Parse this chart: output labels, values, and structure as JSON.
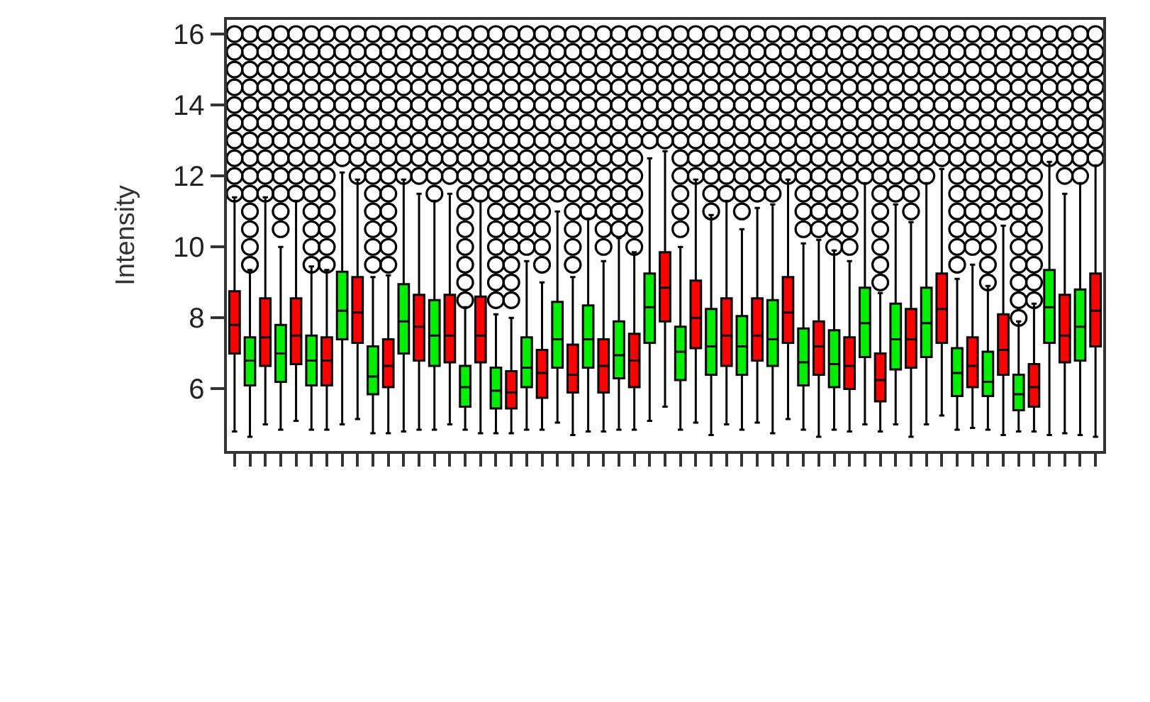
{
  "chart_data": {
    "type": "box",
    "ylabel": "Intensity",
    "ylim": [
      4.25,
      16.4
    ],
    "yticks": [
      6,
      8,
      10,
      12,
      14,
      16
    ],
    "tick_labels": "y",
    "categories": [
      null,
      null,
      null,
      null,
      null,
      null,
      null,
      null,
      null,
      null,
      null,
      null,
      null,
      null,
      null,
      null,
      null,
      null,
      null,
      null,
      null,
      null,
      null,
      null,
      null,
      null,
      null,
      null,
      null,
      null,
      null,
      null,
      null,
      null,
      null,
      null,
      null,
      null,
      null,
      null,
      null,
      null,
      null,
      null,
      null,
      null,
      null,
      null,
      null,
      null,
      null,
      null,
      null,
      null,
      null,
      null,
      null
    ],
    "colors": [
      "#ff0000",
      "#00ee00",
      "#ff0000",
      "#00ee00",
      "#ff0000",
      "#00ee00",
      "#ff0000",
      "#00ee00",
      "#ff0000",
      "#00ee00",
      "#ff0000",
      "#00ee00",
      "#ff0000",
      "#00ee00",
      "#ff0000",
      "#00ee00",
      "#ff0000",
      "#00ee00",
      "#ff0000",
      "#00ee00",
      "#ff0000",
      "#00ee00",
      "#ff0000",
      "#00ee00",
      "#ff0000",
      "#00ee00",
      "#ff0000",
      "#00ee00",
      "#ff0000",
      "#00ee00",
      "#ff0000",
      "#00ee00",
      "#ff0000",
      "#00ee00",
      "#ff0000",
      "#00ee00",
      "#ff0000",
      "#00ee00",
      "#ff0000",
      "#00ee00",
      "#ff0000",
      "#00ee00",
      "#ff0000",
      "#00ee00",
      "#ff0000",
      "#00ee00",
      "#ff0000",
      "#00ee00",
      "#ff0000",
      "#00ee00",
      "#ff0000",
      "#00ee00",
      "#ff0000",
      "#00ee00",
      "#ff0000",
      "#00ee00",
      "#ff0000"
    ],
    "boxes": [
      {
        "low": 4.8,
        "q1": 7.0,
        "median": 7.8,
        "q3": 8.75,
        "high": 11.4,
        "outliers": [
          11.5,
          12,
          12.5,
          13,
          13.5,
          14,
          14.5,
          15,
          15.5,
          16
        ]
      },
      {
        "low": 4.65,
        "q1": 6.1,
        "median": 6.8,
        "q3": 7.45,
        "high": 9.35,
        "outliers": [
          9.5,
          10,
          10.5,
          11,
          11.5,
          12,
          12.5,
          13,
          13.5,
          14,
          14.5,
          15,
          15.5,
          16
        ]
      },
      {
        "low": 5.0,
        "q1": 6.65,
        "median": 7.45,
        "q3": 8.55,
        "high": 11.4,
        "outliers": [
          11.5,
          12,
          12.5,
          13,
          13.5,
          14,
          14.5,
          15,
          15.5,
          16
        ]
      },
      {
        "low": 4.85,
        "q1": 6.2,
        "median": 7.0,
        "q3": 7.8,
        "high": 10.0,
        "outliers": [
          10.5,
          11,
          11.5,
          12,
          12.5,
          13,
          13.5,
          14,
          14.5,
          15,
          15.5,
          16
        ]
      },
      {
        "low": 5.1,
        "q1": 6.7,
        "median": 7.5,
        "q3": 8.55,
        "high": 11.3,
        "outliers": [
          11.5,
          12,
          12.5,
          13,
          13.5,
          14,
          14.5,
          15,
          15.5,
          16
        ]
      },
      {
        "low": 4.85,
        "q1": 6.1,
        "median": 6.8,
        "q3": 7.5,
        "high": 9.45,
        "outliers": [
          9.5,
          10,
          10.5,
          11,
          11.5,
          12,
          12.5,
          13,
          13.5,
          14,
          14.5,
          15,
          15.5,
          16
        ]
      },
      {
        "low": 4.85,
        "q1": 6.1,
        "median": 6.8,
        "q3": 7.45,
        "high": 9.35,
        "outliers": [
          9.5,
          10,
          10.5,
          11,
          11.5,
          12,
          12.5,
          13,
          13.5,
          14,
          14.5,
          15,
          15.5,
          16
        ]
      },
      {
        "low": 5.0,
        "q1": 7.4,
        "median": 8.2,
        "q3": 9.3,
        "high": 12.1,
        "outliers": [
          12.5,
          13,
          13.5,
          14,
          14.5,
          15,
          15.5,
          16
        ]
      },
      {
        "low": 5.15,
        "q1": 7.3,
        "median": 8.15,
        "q3": 9.15,
        "high": 11.9,
        "outliers": [
          12,
          12.5,
          13,
          13.5,
          14,
          14.5,
          15,
          15.5,
          16
        ]
      },
      {
        "low": 4.75,
        "q1": 5.85,
        "median": 6.35,
        "q3": 7.2,
        "high": 9.15,
        "outliers": [
          9.5,
          10,
          10.5,
          11,
          11.5,
          12,
          12.5,
          13,
          13.5,
          14,
          14.5,
          15,
          15.5,
          16
        ]
      },
      {
        "low": 4.75,
        "q1": 6.05,
        "median": 6.65,
        "q3": 7.4,
        "high": 9.2,
        "outliers": [
          9.5,
          10,
          10.5,
          11,
          11.5,
          12,
          12.5,
          13,
          13.5,
          14,
          14.5,
          15,
          15.5,
          16
        ]
      },
      {
        "low": 4.8,
        "q1": 7.0,
        "median": 7.9,
        "q3": 8.95,
        "high": 11.9,
        "outliers": [
          12,
          12.5,
          13,
          13.5,
          14,
          14.5,
          15,
          15.5,
          16
        ]
      },
      {
        "low": 4.85,
        "q1": 6.8,
        "median": 7.75,
        "q3": 8.65,
        "high": 11.5,
        "outliers": [
          12,
          12.5,
          13,
          13.5,
          14,
          14.5,
          15,
          15.5,
          16
        ]
      },
      {
        "low": 4.85,
        "q1": 6.65,
        "median": 7.5,
        "q3": 8.5,
        "high": 11.3,
        "outliers": [
          11.5,
          12,
          12.5,
          13,
          13.5,
          14,
          14.5,
          15,
          15.5,
          16
        ]
      },
      {
        "low": 5.0,
        "q1": 6.75,
        "median": 7.5,
        "q3": 8.65,
        "high": 11.5,
        "outliers": [
          12,
          12.5,
          13,
          13.5,
          14,
          14.5,
          15,
          15.5,
          16
        ]
      },
      {
        "low": 4.85,
        "q1": 5.5,
        "median": 6.05,
        "q3": 6.65,
        "high": 8.3,
        "outliers": [
          8.5,
          9,
          9.5,
          10,
          10.5,
          11,
          11.5,
          12,
          12.5,
          13,
          13.5,
          14,
          14.5,
          15,
          15.5,
          16
        ]
      },
      {
        "low": 4.75,
        "q1": 6.75,
        "median": 7.5,
        "q3": 8.6,
        "high": 11.3,
        "outliers": [
          11.5,
          12,
          12.5,
          13,
          13.5,
          14,
          14.5,
          15,
          15.5,
          16
        ]
      },
      {
        "low": 4.75,
        "q1": 5.45,
        "median": 5.95,
        "q3": 6.6,
        "high": 8.1,
        "outliers": [
          8.5,
          9,
          9.5,
          10,
          10.5,
          11,
          11.5,
          12,
          12.5,
          13,
          13.5,
          14,
          14.5,
          15,
          15.5,
          16
        ]
      },
      {
        "low": 4.75,
        "q1": 5.45,
        "median": 5.9,
        "q3": 6.5,
        "high": 8.0,
        "outliers": [
          8.5,
          9,
          9.5,
          10,
          10.5,
          11,
          11.5,
          12,
          12.5,
          13,
          13.5,
          14,
          14.5,
          15,
          15.5,
          16
        ]
      },
      {
        "low": 4.85,
        "q1": 6.05,
        "median": 6.6,
        "q3": 7.45,
        "high": 9.6,
        "outliers": [
          10,
          10.5,
          11,
          11.5,
          12,
          12.5,
          13,
          13.5,
          14,
          14.5,
          15,
          15.5,
          16
        ]
      },
      {
        "low": 4.85,
        "q1": 5.75,
        "median": 6.45,
        "q3": 7.1,
        "high": 9.0,
        "outliers": [
          9.5,
          10,
          10.5,
          11,
          11.5,
          12,
          12.5,
          13,
          13.5,
          14,
          14.5,
          15,
          15.5,
          16
        ]
      },
      {
        "low": 5.05,
        "q1": 6.6,
        "median": 7.4,
        "q3": 8.45,
        "high": 11.0,
        "outliers": [
          11.5,
          12,
          12.5,
          13,
          13.5,
          14,
          14.5,
          15,
          15.5,
          16
        ]
      },
      {
        "low": 4.7,
        "q1": 5.9,
        "median": 6.4,
        "q3": 7.25,
        "high": 9.15,
        "outliers": [
          9.5,
          10,
          10.5,
          11,
          11.5,
          12,
          12.5,
          13,
          13.5,
          14,
          14.5,
          15,
          15.5,
          16
        ]
      },
      {
        "low": 4.8,
        "q1": 6.6,
        "median": 7.4,
        "q3": 8.35,
        "high": 10.8,
        "outliers": [
          11,
          11.5,
          12,
          12.5,
          13,
          13.5,
          14,
          14.5,
          15,
          15.5,
          16
        ]
      },
      {
        "low": 4.8,
        "q1": 5.9,
        "median": 6.65,
        "q3": 7.4,
        "high": 9.6,
        "outliers": [
          10,
          10.5,
          11,
          11.5,
          12,
          12.5,
          13,
          13.5,
          14,
          14.5,
          15,
          15.5,
          16
        ]
      },
      {
        "low": 4.85,
        "q1": 6.3,
        "median": 6.95,
        "q3": 7.9,
        "high": 10.25,
        "outliers": [
          10.5,
          11,
          11.5,
          12,
          12.5,
          13,
          13.5,
          14,
          14.5,
          15,
          15.5,
          16
        ]
      },
      {
        "low": 4.85,
        "q1": 6.05,
        "median": 6.8,
        "q3": 7.55,
        "high": 9.85,
        "outliers": [
          10,
          10.5,
          11,
          11.5,
          12,
          12.5,
          13,
          13.5,
          14,
          14.5,
          15,
          15.5,
          16
        ]
      },
      {
        "low": 5.1,
        "q1": 7.3,
        "median": 8.3,
        "q3": 9.25,
        "high": 12.5,
        "outliers": [
          13,
          13.5,
          14,
          14.5,
          15,
          15.5,
          16
        ]
      },
      {
        "low": 5.5,
        "q1": 7.9,
        "median": 8.85,
        "q3": 9.85,
        "high": 12.7,
        "outliers": [
          13,
          13.5,
          14,
          14.5,
          15,
          15.5,
          16
        ]
      },
      {
        "low": 4.85,
        "q1": 6.25,
        "median": 7.05,
        "q3": 7.75,
        "high": 10.0,
        "outliers": [
          10.5,
          11,
          11.5,
          12,
          12.5,
          13,
          13.5,
          14,
          14.5,
          15,
          15.5,
          16
        ]
      },
      {
        "low": 5.05,
        "q1": 7.15,
        "median": 8.0,
        "q3": 9.05,
        "high": 11.9,
        "outliers": [
          12,
          12.5,
          13,
          13.5,
          14,
          14.5,
          15,
          15.5,
          16
        ]
      },
      {
        "low": 4.7,
        "q1": 6.4,
        "median": 7.2,
        "q3": 8.25,
        "high": 10.9,
        "outliers": [
          11,
          11.5,
          12,
          12.5,
          13,
          13.5,
          14,
          14.5,
          15,
          15.5,
          16
        ]
      },
      {
        "low": 5.0,
        "q1": 6.65,
        "median": 7.5,
        "q3": 8.55,
        "high": 11.3,
        "outliers": [
          11.5,
          12,
          12.5,
          13,
          13.5,
          14,
          14.5,
          15,
          15.5,
          16
        ]
      },
      {
        "low": 4.85,
        "q1": 6.4,
        "median": 7.2,
        "q3": 8.05,
        "high": 10.5,
        "outliers": [
          11,
          11.5,
          12,
          12.5,
          13,
          13.5,
          14,
          14.5,
          15,
          15.5,
          16
        ]
      },
      {
        "low": 5.05,
        "q1": 6.8,
        "median": 7.5,
        "q3": 8.55,
        "high": 11.1,
        "outliers": [
          11.5,
          12,
          12.5,
          13,
          13.5,
          14,
          14.5,
          15,
          15.5,
          16
        ]
      },
      {
        "low": 4.75,
        "q1": 6.65,
        "median": 7.4,
        "q3": 8.5,
        "high": 11.2,
        "outliers": [
          11.5,
          12,
          12.5,
          13,
          13.5,
          14,
          14.5,
          15,
          15.5,
          16
        ]
      },
      {
        "low": 5.15,
        "q1": 7.3,
        "median": 8.15,
        "q3": 9.15,
        "high": 11.9,
        "outliers": [
          12,
          12.5,
          13,
          13.5,
          14,
          14.5,
          15,
          15.5,
          16
        ]
      },
      {
        "low": 4.85,
        "q1": 6.1,
        "median": 6.75,
        "q3": 7.7,
        "high": 10.1,
        "outliers": [
          10.5,
          11,
          11.5,
          12,
          12.5,
          13,
          13.5,
          14,
          14.5,
          15,
          15.5,
          16
        ]
      },
      {
        "low": 4.65,
        "q1": 6.4,
        "median": 7.2,
        "q3": 7.9,
        "high": 10.2,
        "outliers": [
          10.5,
          11,
          11.5,
          12,
          12.5,
          13,
          13.5,
          14,
          14.5,
          15,
          15.5,
          16
        ]
      },
      {
        "low": 4.85,
        "q1": 6.05,
        "median": 6.7,
        "q3": 7.65,
        "high": 9.9,
        "outliers": [
          10,
          10.5,
          11,
          11.5,
          12,
          12.5,
          13,
          13.5,
          14,
          14.5,
          15,
          15.5,
          16
        ]
      },
      {
        "low": 4.8,
        "q1": 6.0,
        "median": 6.65,
        "q3": 7.45,
        "high": 9.6,
        "outliers": [
          10,
          10.5,
          11,
          11.5,
          12,
          12.5,
          13,
          13.5,
          14,
          14.5,
          15,
          15.5,
          16
        ]
      },
      {
        "low": 5.0,
        "q1": 6.9,
        "median": 7.85,
        "q3": 8.85,
        "high": 11.8,
        "outliers": [
          12,
          12.5,
          13,
          13.5,
          14,
          14.5,
          15,
          15.5,
          16
        ]
      },
      {
        "low": 4.8,
        "q1": 5.65,
        "median": 6.25,
        "q3": 7.0,
        "high": 8.7,
        "outliers": [
          9,
          9.5,
          10,
          10.5,
          11,
          11.5,
          12,
          12.5,
          13,
          13.5,
          14,
          14.5,
          15,
          15.5,
          16
        ]
      },
      {
        "low": 5.0,
        "q1": 6.55,
        "median": 7.4,
        "q3": 8.4,
        "high": 11.2,
        "outliers": [
          11.5,
          12,
          12.5,
          13,
          13.5,
          14,
          14.5,
          15,
          15.5,
          16
        ]
      },
      {
        "low": 4.65,
        "q1": 6.6,
        "median": 7.4,
        "q3": 8.25,
        "high": 10.7,
        "outliers": [
          11,
          11.5,
          12,
          12.5,
          13,
          13.5,
          14,
          14.5,
          15,
          15.5,
          16
        ]
      },
      {
        "low": 5.0,
        "q1": 6.9,
        "median": 7.85,
        "q3": 8.85,
        "high": 11.8,
        "outliers": [
          12,
          12.5,
          13,
          13.5,
          14,
          14.5,
          15,
          15.5,
          16
        ]
      },
      {
        "low": 5.25,
        "q1": 7.3,
        "median": 8.25,
        "q3": 9.25,
        "high": 12.2,
        "outliers": [
          12.5,
          13,
          13.5,
          14,
          14.5,
          15,
          15.5,
          16
        ]
      },
      {
        "low": 4.85,
        "q1": 5.8,
        "median": 6.45,
        "q3": 7.15,
        "high": 9.1,
        "outliers": [
          9.5,
          10,
          10.5,
          11,
          11.5,
          12,
          12.5,
          13,
          13.5,
          14,
          14.5,
          15,
          15.5,
          16
        ]
      },
      {
        "low": 4.9,
        "q1": 6.05,
        "median": 6.65,
        "q3": 7.45,
        "high": 9.5,
        "outliers": [
          10,
          10.5,
          11,
          11.5,
          12,
          12.5,
          13,
          13.5,
          14,
          14.5,
          15,
          15.5,
          16
        ]
      },
      {
        "low": 4.85,
        "q1": 5.8,
        "median": 6.2,
        "q3": 7.05,
        "high": 8.9,
        "outliers": [
          9,
          9.5,
          10,
          10.5,
          11,
          11.5,
          12,
          12.5,
          13,
          13.5,
          14,
          14.5,
          15,
          15.5,
          16
        ]
      },
      {
        "low": 4.7,
        "q1": 6.4,
        "median": 7.1,
        "q3": 8.1,
        "high": 10.6,
        "outliers": [
          11,
          11.5,
          12,
          12.5,
          13,
          13.5,
          14,
          14.5,
          15,
          15.5,
          16
        ]
      },
      {
        "low": 4.8,
        "q1": 5.4,
        "median": 5.85,
        "q3": 6.4,
        "high": 7.9,
        "outliers": [
          8,
          8.5,
          9,
          9.5,
          10,
          10.5,
          11,
          11.5,
          12,
          12.5,
          13,
          13.5,
          14,
          14.5,
          15,
          15.5,
          16
        ]
      },
      {
        "low": 4.8,
        "q1": 5.5,
        "median": 6.05,
        "q3": 6.7,
        "high": 8.4,
        "outliers": [
          8.5,
          9,
          9.5,
          10,
          10.5,
          11,
          11.5,
          12,
          12.5,
          13,
          13.5,
          14,
          14.5,
          15,
          15.5,
          16
        ]
      },
      {
        "low": 4.7,
        "q1": 7.3,
        "median": 8.3,
        "q3": 9.35,
        "high": 12.4,
        "outliers": [
          12.5,
          13,
          13.5,
          14,
          14.5,
          15,
          15.5,
          16
        ]
      },
      {
        "low": 4.75,
        "q1": 6.75,
        "median": 7.5,
        "q3": 8.65,
        "high": 11.5,
        "outliers": [
          12,
          12.5,
          13,
          13.5,
          14,
          14.5,
          15,
          15.5,
          16
        ]
      },
      {
        "low": 4.7,
        "q1": 6.8,
        "median": 7.75,
        "q3": 8.8,
        "high": 11.8,
        "outliers": [
          12,
          12.5,
          13,
          13.5,
          14,
          14.5,
          15,
          15.5,
          16
        ]
      },
      {
        "low": 4.65,
        "q1": 7.2,
        "median": 8.2,
        "q3": 9.25,
        "high": 12.3,
        "outliers": [
          12.5,
          13,
          13.5,
          14,
          14.5,
          15,
          15.5,
          16
        ]
      }
    ]
  }
}
